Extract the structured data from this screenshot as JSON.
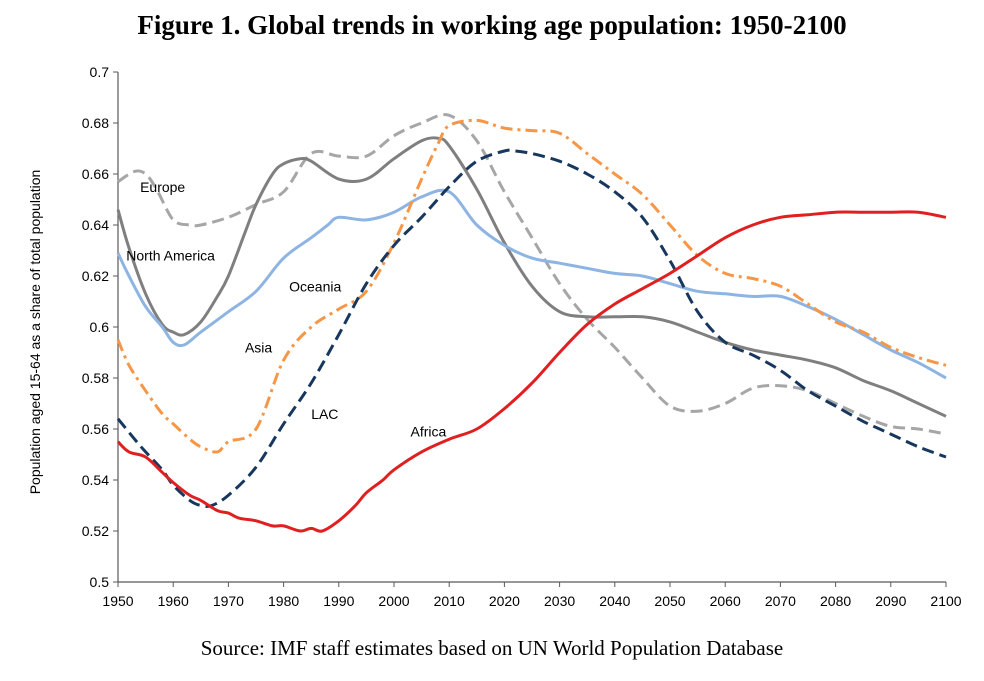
{
  "title": "Figure 1. Global trends in working age population: 1950-2100",
  "source": "Source: IMF staff estimates based on UN World Population Database",
  "chart_data": {
    "type": "line",
    "title": "Figure 1. Global trends in working age population: 1950-2100",
    "xlabel": "",
    "ylabel": "Population aged 15-64 as a share of total population",
    "xlim": [
      1950,
      2100
    ],
    "ylim": [
      0.5,
      0.7
    ],
    "xticks": [
      1950,
      1960,
      1970,
      1980,
      1990,
      2000,
      2010,
      2020,
      2030,
      2040,
      2050,
      2060,
      2070,
      2080,
      2090,
      2100
    ],
    "yticks": [
      "0.5",
      "0.52",
      "0.54",
      "0.56",
      "0.58",
      "0.6",
      "0.62",
      "0.64",
      "0.66",
      "0.68",
      "0.7"
    ],
    "grid": false,
    "legend": "inline labels",
    "series": [
      {
        "name": "Europe",
        "color": "#a6a6a6",
        "style": "dashed",
        "x": [
          1950,
          1953,
          1955,
          1957,
          1960,
          1963,
          1965,
          1970,
          1975,
          1980,
          1985,
          1990,
          1995,
          2000,
          2005,
          2010,
          2015,
          2020,
          2025,
          2030,
          2035,
          2040,
          2045,
          2050,
          2055,
          2060,
          2065,
          2070,
          2075,
          2080,
          2085,
          2090,
          2095,
          2100
        ],
        "y": [
          0.657,
          0.661,
          0.66,
          0.654,
          0.642,
          0.64,
          0.64,
          0.643,
          0.648,
          0.653,
          0.668,
          0.667,
          0.667,
          0.675,
          0.68,
          0.683,
          0.673,
          0.653,
          0.635,
          0.617,
          0.603,
          0.592,
          0.58,
          0.569,
          0.567,
          0.57,
          0.576,
          0.577,
          0.575,
          0.57,
          0.565,
          0.561,
          0.56,
          0.558
        ]
      },
      {
        "name": "North America",
        "color": "#7f7f7f",
        "style": "solid",
        "x": [
          1950,
          1952,
          1955,
          1958,
          1960,
          1962,
          1965,
          1968,
          1970,
          1973,
          1975,
          1978,
          1980,
          1983,
          1985,
          1990,
          1995,
          2000,
          2005,
          2008,
          2010,
          2015,
          2020,
          2025,
          2030,
          2035,
          2040,
          2045,
          2050,
          2055,
          2060,
          2065,
          2070,
          2075,
          2080,
          2085,
          2090,
          2095,
          2100
        ],
        "y": [
          0.646,
          0.631,
          0.613,
          0.601,
          0.598,
          0.597,
          0.602,
          0.612,
          0.62,
          0.637,
          0.648,
          0.66,
          0.664,
          0.666,
          0.665,
          0.658,
          0.658,
          0.666,
          0.673,
          0.674,
          0.671,
          0.654,
          0.633,
          0.616,
          0.606,
          0.604,
          0.604,
          0.604,
          0.602,
          0.598,
          0.594,
          0.591,
          0.589,
          0.587,
          0.584,
          0.579,
          0.575,
          0.57,
          0.565
        ]
      },
      {
        "name": "Oceania",
        "color": "#8db4e2",
        "style": "solid",
        "x": [
          1950,
          1952,
          1955,
          1958,
          1960,
          1962,
          1965,
          1970,
          1975,
          1980,
          1985,
          1988,
          1990,
          1995,
          2000,
          2005,
          2010,
          2015,
          2020,
          2025,
          2030,
          2035,
          2040,
          2045,
          2050,
          2055,
          2060,
          2065,
          2070,
          2075,
          2080,
          2085,
          2090,
          2095,
          2100
        ],
        "y": [
          0.629,
          0.62,
          0.608,
          0.6,
          0.594,
          0.593,
          0.598,
          0.606,
          0.614,
          0.627,
          0.635,
          0.64,
          0.643,
          0.642,
          0.645,
          0.651,
          0.653,
          0.64,
          0.632,
          0.627,
          0.625,
          0.623,
          0.621,
          0.62,
          0.617,
          0.614,
          0.613,
          0.612,
          0.612,
          0.608,
          0.603,
          0.597,
          0.591,
          0.586,
          0.58
        ]
      },
      {
        "name": "Asia",
        "color": "#f79646",
        "style": "dashdot",
        "x": [
          1950,
          1952,
          1955,
          1958,
          1960,
          1963,
          1965,
          1968,
          1970,
          1975,
          1980,
          1985,
          1990,
          1995,
          2000,
          2005,
          2008,
          2010,
          2015,
          2020,
          2025,
          2030,
          2035,
          2040,
          2045,
          2050,
          2055,
          2060,
          2065,
          2070,
          2075,
          2080,
          2085,
          2090,
          2095,
          2100
        ],
        "y": [
          0.595,
          0.585,
          0.575,
          0.566,
          0.562,
          0.556,
          0.553,
          0.551,
          0.555,
          0.56,
          0.587,
          0.6,
          0.607,
          0.614,
          0.633,
          0.658,
          0.672,
          0.679,
          0.681,
          0.678,
          0.677,
          0.676,
          0.668,
          0.66,
          0.652,
          0.64,
          0.628,
          0.621,
          0.619,
          0.616,
          0.609,
          0.602,
          0.598,
          0.592,
          0.588,
          0.585
        ]
      },
      {
        "name": "LAC",
        "color": "#17375e",
        "style": "dashed",
        "x": [
          1950,
          1953,
          1955,
          1958,
          1960,
          1963,
          1965,
          1967,
          1970,
          1975,
          1980,
          1985,
          1990,
          1995,
          2000,
          2005,
          2010,
          2015,
          2020,
          2022,
          2025,
          2030,
          2035,
          2040,
          2045,
          2050,
          2055,
          2060,
          2065,
          2070,
          2075,
          2080,
          2085,
          2090,
          2095,
          2100
        ],
        "y": [
          0.564,
          0.556,
          0.551,
          0.544,
          0.538,
          0.532,
          0.53,
          0.53,
          0.534,
          0.545,
          0.562,
          0.578,
          0.597,
          0.617,
          0.632,
          0.643,
          0.655,
          0.665,
          0.669,
          0.669,
          0.668,
          0.665,
          0.66,
          0.653,
          0.643,
          0.626,
          0.606,
          0.594,
          0.589,
          0.583,
          0.575,
          0.569,
          0.563,
          0.558,
          0.553,
          0.549
        ]
      },
      {
        "name": "Africa",
        "color": "#e02020",
        "style": "solid",
        "x": [
          1950,
          1952,
          1955,
          1958,
          1960,
          1963,
          1965,
          1968,
          1970,
          1972,
          1975,
          1978,
          1980,
          1983,
          1985,
          1987,
          1990,
          1993,
          1995,
          1998,
          2000,
          2005,
          2010,
          2015,
          2020,
          2025,
          2030,
          2035,
          2040,
          2045,
          2050,
          2055,
          2060,
          2065,
          2070,
          2075,
          2080,
          2085,
          2090,
          2095,
          2100
        ],
        "y": [
          0.555,
          0.551,
          0.549,
          0.543,
          0.539,
          0.534,
          0.532,
          0.528,
          0.527,
          0.525,
          0.524,
          0.522,
          0.522,
          0.52,
          0.521,
          0.52,
          0.524,
          0.53,
          0.535,
          0.54,
          0.544,
          0.551,
          0.556,
          0.56,
          0.568,
          0.578,
          0.59,
          0.601,
          0.609,
          0.615,
          0.621,
          0.628,
          0.635,
          0.64,
          0.643,
          0.644,
          0.645,
          0.645,
          0.645,
          0.645,
          0.643
        ]
      }
    ],
    "annotations": [
      {
        "text": "Europe",
        "x": 1954,
        "y": 0.653
      },
      {
        "text": "North America",
        "x": 1951.5,
        "y": 0.626
      },
      {
        "text": "Oceania",
        "x": 1981,
        "y": 0.614
      },
      {
        "text": "Asia",
        "x": 1973,
        "y": 0.59
      },
      {
        "text": "LAC",
        "x": 1985,
        "y": 0.564
      },
      {
        "text": "Africa",
        "x": 2003,
        "y": 0.557
      }
    ]
  }
}
